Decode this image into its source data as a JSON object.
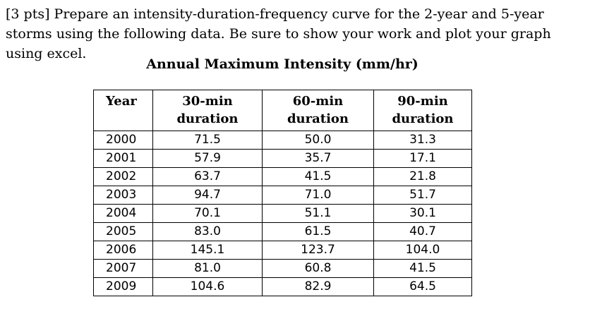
{
  "question": "[3 pts] Prepare an intensity-duration-frequency curve for the 2-year and 5-year storms using the following data. Be sure to show your work and plot your graph using excel.",
  "table": {
    "caption": "Annual Maximum Intensity (mm/hr)",
    "headers": {
      "year": "Year",
      "d30": "30-min duration",
      "d60": "60-min duration",
      "d90": "90-min duration"
    },
    "rows": [
      {
        "year": "2000",
        "d30": "71.5",
        "d60": "50.0",
        "d90": "31.3"
      },
      {
        "year": "2001",
        "d30": "57.9",
        "d60": "35.7",
        "d90": "17.1"
      },
      {
        "year": "2002",
        "d30": "63.7",
        "d60": "41.5",
        "d90": "21.8"
      },
      {
        "year": "2003",
        "d30": "94.7",
        "d60": "71.0",
        "d90": "51.7"
      },
      {
        "year": "2004",
        "d30": "70.1",
        "d60": "51.1",
        "d90": "30.1"
      },
      {
        "year": "2005",
        "d30": "83.0",
        "d60": "61.5",
        "d90": "40.7"
      },
      {
        "year": "2006",
        "d30": "145.1",
        "d60": "123.7",
        "d90": "104.0"
      },
      {
        "year": "2007",
        "d30": "81.0",
        "d60": "60.8",
        "d90": "41.5"
      },
      {
        "year": "2009",
        "d30": "104.6",
        "d60": "82.9",
        "d90": "64.5"
      }
    ]
  }
}
